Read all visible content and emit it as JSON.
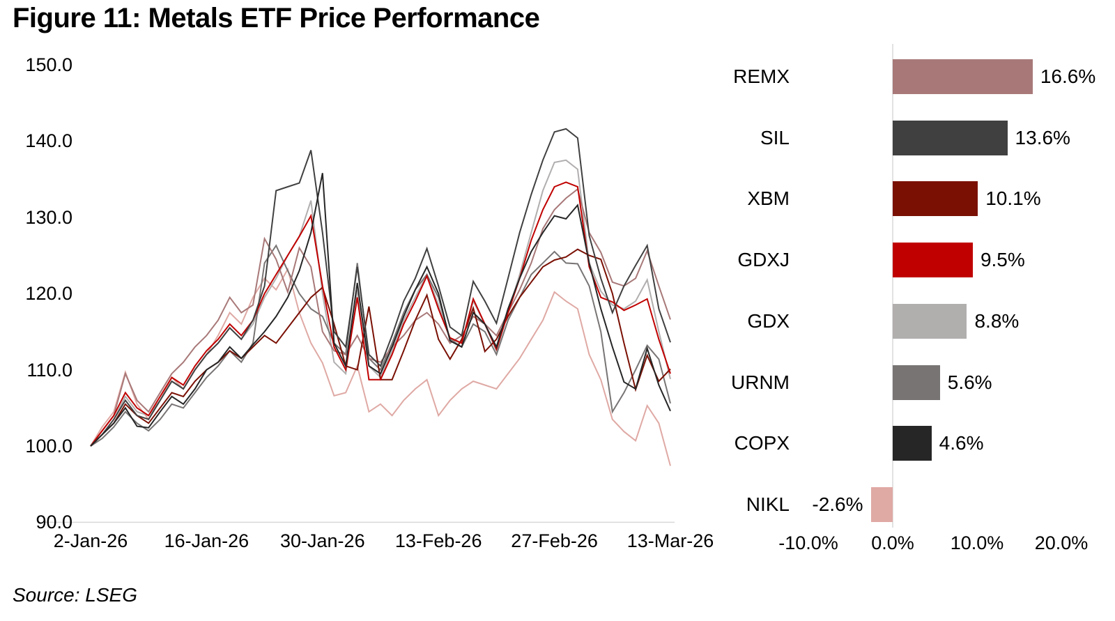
{
  "title": "Figure 11: Metals ETF Price Performance",
  "source": "Source: LSEG",
  "colors": {
    "REMX": "#a87878",
    "SIL": "#404040",
    "XBM": "#7a1004",
    "GDXJ": "#c00000",
    "GDX": "#b1aeae",
    "URNM": "#787474",
    "COPX": "#262626",
    "NIKL": "#dfa9a4",
    "gridline": "#d9d9d9",
    "text": "#000000"
  },
  "chart_data": [
    {
      "type": "line",
      "title": "Metals ETF Price Performance (indexed, 2-Jan-26 = 100)",
      "xlabel": "",
      "ylabel": "",
      "ylim": [
        90,
        150
      ],
      "grid": "single baseline at 90.0",
      "legend": "none (colors match bar chart at right)",
      "y_tick_labels": [
        "150.0",
        "140.0",
        "130.0",
        "120.0",
        "110.0",
        "100.0",
        "90.0"
      ],
      "y_tick_values": [
        150,
        140,
        130,
        120,
        110,
        100,
        90
      ],
      "x_tick_labels": [
        "2-Jan-26",
        "16-Jan-26",
        "30-Jan-26",
        "13-Feb-26",
        "27-Feb-26",
        "13-Mar-26"
      ],
      "x_tick_indices": [
        0,
        10,
        20,
        30,
        40,
        50
      ],
      "n_points": 51,
      "series": [
        {
          "name": "NIKL",
          "color": "#dfa9a4",
          "values": [
            100,
            102.5,
            104.5,
            109.7,
            105.5,
            103.5,
            106,
            109,
            107.5,
            110,
            112,
            114.5,
            117.5,
            116,
            119.5,
            122,
            120.5,
            123.2,
            117.5,
            113.5,
            110.9,
            106.6,
            107,
            110.5,
            104.5,
            105.5,
            104,
            106,
            107.5,
            108.7,
            104,
            106,
            107.5,
            108.5,
            108,
            107.5,
            109.5,
            111.5,
            114,
            116.5,
            120.2,
            119,
            118,
            112,
            108.7,
            103.5,
            101.9,
            100.7,
            105.3,
            103,
            97.4
          ]
        },
        {
          "name": "GDX",
          "color": "#b1aeae",
          "values": [
            100,
            101.5,
            103.5,
            106.5,
            104.5,
            104,
            106,
            108.5,
            107.5,
            110,
            112,
            113.5,
            115.5,
            114,
            116,
            119.5,
            122,
            125,
            127.5,
            132.2,
            120,
            111,
            109.5,
            120.5,
            110.5,
            109,
            112.5,
            116.5,
            119.5,
            122.5,
            118.5,
            114,
            113.5,
            119,
            116,
            112.5,
            117.5,
            122.5,
            128,
            133.5,
            137.2,
            137.5,
            136.3,
            124,
            120.3,
            118.5,
            118,
            119,
            121.8,
            115,
            108.8
          ]
        },
        {
          "name": "URNM",
          "color": "#787474",
          "values": [
            100,
            101,
            102.5,
            104.5,
            103,
            102,
            103.5,
            105.5,
            105,
            107,
            109,
            110.5,
            112.5,
            111,
            113.5,
            124,
            126.3,
            123,
            120,
            118,
            117,
            113.5,
            112,
            124,
            111.5,
            110,
            113.5,
            117.5,
            120.5,
            122.5,
            119.5,
            114,
            113,
            116,
            115,
            112,
            116.5,
            119.5,
            122.5,
            124,
            125.5,
            124,
            123.9,
            121,
            115,
            104.5,
            107,
            110,
            113.2,
            111.4,
            105.6
          ]
        },
        {
          "name": "REMX",
          "color": "#a87878",
          "values": [
            100,
            102,
            104,
            109.5,
            106,
            104.5,
            107,
            109.5,
            111,
            113,
            114.5,
            116.5,
            119.5,
            117.5,
            118.5,
            127.2,
            124.5,
            120.2,
            126,
            123.5,
            115,
            112.5,
            112,
            114.5,
            111.5,
            111,
            113,
            114.5,
            116.5,
            117.5,
            116,
            113.5,
            114.5,
            117,
            116,
            114.5,
            117.5,
            120.5,
            124,
            128.5,
            131,
            132.5,
            133.7,
            128,
            125.4,
            121.5,
            121,
            122,
            125.6,
            121,
            116.6
          ]
        },
        {
          "name": "XBM",
          "color": "#7a1004",
          "values": [
            100,
            101.5,
            103,
            105.5,
            104,
            103,
            105,
            107,
            106.5,
            108.5,
            110,
            111,
            112.5,
            111.5,
            113,
            114.5,
            113.5,
            115.5,
            117.5,
            119.5,
            120.8,
            116,
            110.5,
            110,
            118.3,
            108.7,
            108.7,
            112.5,
            116.5,
            119.8,
            114,
            111.4,
            114,
            118.1,
            112.4,
            114,
            117,
            119.5,
            121.5,
            123.5,
            124.4,
            124.8,
            125.8,
            125,
            124.5,
            120,
            113.5,
            107.4,
            111.9,
            108.5,
            110.1
          ]
        },
        {
          "name": "GDXJ",
          "color": "#c00000",
          "values": [
            100,
            102,
            104,
            107,
            105,
            104,
            106.5,
            109,
            108,
            110.5,
            112.5,
            114,
            116,
            114.5,
            116.5,
            120,
            122.5,
            125,
            127.5,
            130.2,
            121,
            113,
            110,
            119.5,
            108.7,
            108.7,
            112,
            116,
            119,
            122.3,
            118,
            114.2,
            113.5,
            119.3,
            116,
            112.7,
            117.5,
            122,
            127,
            131,
            134,
            134.6,
            134,
            123.5,
            119.5,
            118.9,
            117.8,
            118.5,
            119.3,
            114,
            109.5
          ]
        },
        {
          "name": "SIL",
          "color": "#404040",
          "values": [
            100,
            101.5,
            103.5,
            106,
            104,
            103.5,
            106,
            108.5,
            107.5,
            110,
            112,
            113.5,
            115.5,
            114,
            116.5,
            121,
            133.5,
            134,
            134.5,
            138.8,
            128,
            115,
            113,
            123.5,
            112,
            110.5,
            114.5,
            119,
            122,
            125.9,
            121,
            115.6,
            114.5,
            121.6,
            119,
            116.1,
            122,
            128,
            133,
            137.5,
            141.2,
            141.6,
            140.4,
            127.6,
            122,
            117.5,
            121,
            123.7,
            126.3,
            118,
            113.6
          ]
        },
        {
          "name": "COPX",
          "color": "#262626",
          "values": [
            100,
            101.5,
            103,
            105,
            102.6,
            102.4,
            104.5,
            106.5,
            105.5,
            107.5,
            110,
            111,
            113,
            111.5,
            113.3,
            115,
            117,
            119.5,
            123,
            128,
            135.8,
            113.5,
            110.5,
            121.4,
            110.5,
            109.5,
            113,
            117,
            120.5,
            123.5,
            120,
            113.8,
            113,
            117.5,
            116,
            113,
            118,
            122,
            125.5,
            128,
            130.2,
            129.8,
            131.6,
            124,
            118,
            113,
            108.4,
            107.5,
            112.8,
            108,
            104.6
          ]
        }
      ]
    },
    {
      "type": "bar",
      "orientation": "horizontal",
      "title": "Period % change by ETF",
      "xlabel": "",
      "ylabel": "",
      "xlim": [
        -10,
        20
      ],
      "categories": [
        "REMX",
        "SIL",
        "XBM",
        "GDXJ",
        "GDX",
        "URNM",
        "COPX",
        "NIKL"
      ],
      "values": [
        16.6,
        13.6,
        10.1,
        9.5,
        8.8,
        5.6,
        4.6,
        -2.6
      ],
      "value_labels": [
        "16.6%",
        "13.6%",
        "10.1%",
        "9.5%",
        "8.8%",
        "5.6%",
        "4.6%",
        "-2.6%"
      ],
      "bar_colors": [
        "#a87878",
        "#404040",
        "#7a1004",
        "#c00000",
        "#b1aeae",
        "#787474",
        "#262626",
        "#dfa9a4"
      ],
      "x_tick_labels": [
        "-10.0%",
        "0.0%",
        "10.0%",
        "20.0%"
      ],
      "x_tick_values": [
        -10,
        0,
        10,
        20
      ]
    }
  ]
}
